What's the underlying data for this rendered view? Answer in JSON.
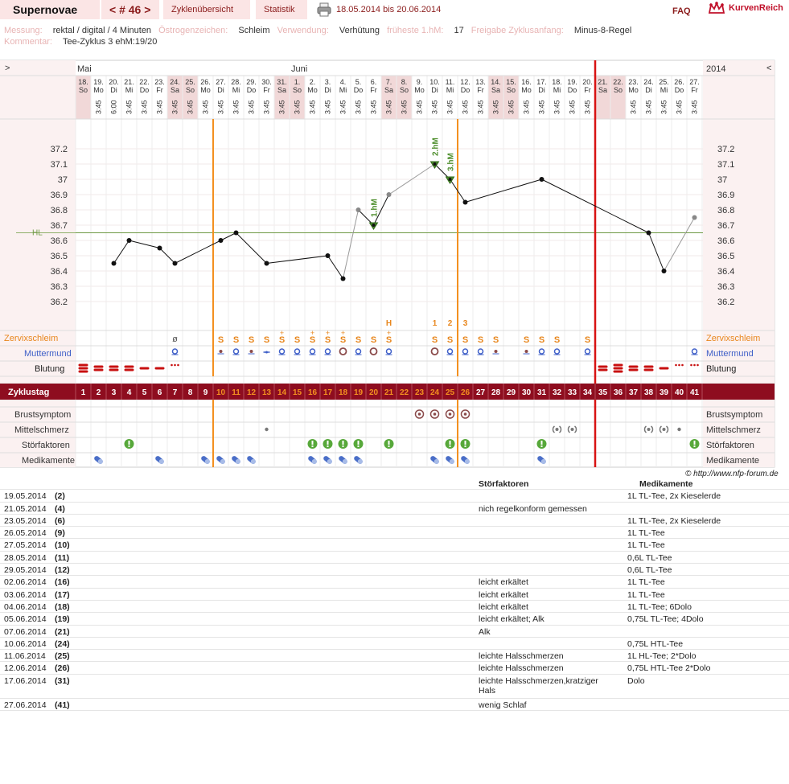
{
  "header": {
    "title": "Supernovae",
    "cycle_nav": "< # 46 >",
    "tab_overview": "Zyklenübersicht",
    "tab_stats": "Statistik",
    "date_range": "18.05.2014 bis 20.06.2014",
    "faq": "FAQ",
    "brand": "KurvenReich",
    "print_icon": "printer-icon",
    "brand_icon": "crown-icon"
  },
  "meta": {
    "messung_label": "Messung:",
    "messung_value": "rektal / digital / 4 Minuten",
    "oestrogen_label": "Östrogenzeichen:",
    "oestrogen_value": "Schleim",
    "verwendung_label": "Verwendung:",
    "verwendung_value": "Verhütung",
    "hm_label": "früheste 1.hM:",
    "hm_value": "17",
    "freigabe_label": "Freigabe Zyklusanfang:",
    "freigabe_value": "Minus-8-Regel",
    "kommentar_label": "Kommentar:",
    "kommentar_value": "Tee-Zyklus 3 ehM:19/20"
  },
  "chart_data": {
    "type": "line",
    "nav_prev": ">",
    "nav_next": "<",
    "year": "2014",
    "month_labels": [
      {
        "day": 1,
        "label": "Mai"
      },
      {
        "day": 15,
        "label": "Juni"
      }
    ],
    "dates": [
      "18.",
      "19.",
      "20.",
      "21.",
      "22.",
      "23.",
      "24.",
      "25.",
      "26.",
      "27.",
      "28.",
      "29.",
      "30.",
      "31.",
      "1.",
      "2.",
      "3.",
      "4.",
      "5.",
      "6.",
      "7.",
      "8.",
      "9.",
      "10.",
      "11.",
      "12.",
      "13.",
      "14.",
      "15.",
      "16.",
      "17.",
      "18.",
      "19.",
      "20.",
      "21.",
      "22.",
      "23.",
      "24.",
      "25.",
      "26.",
      "27."
    ],
    "weekdays": [
      "So",
      "Mo",
      "Di",
      "Mi",
      "Do",
      "Fr",
      "Sa",
      "So",
      "Mo",
      "Di",
      "Mi",
      "Do",
      "Fr",
      "Sa",
      "So",
      "Mo",
      "Di",
      "Mi",
      "Do",
      "Fr",
      "Sa",
      "So",
      "Mo",
      "Di",
      "Mi",
      "Do",
      "Fr",
      "Sa",
      "So",
      "Mo",
      "Di",
      "Mi",
      "Do",
      "Fr",
      "Sa",
      "So",
      "Mo",
      "Di",
      "Mi",
      "Do",
      "Fr"
    ],
    "weekend_days": [
      1,
      7,
      8,
      14,
      15,
      21,
      22,
      28,
      29,
      35,
      36
    ],
    "times": [
      "",
      "3:45",
      "6:00",
      "3:45",
      "3:45",
      "3:45",
      "3:45",
      "3:45",
      "3:45",
      "3:45",
      "3:45",
      "3:45",
      "3:45",
      "3:45",
      "3:45",
      "3:45",
      "3:45",
      "3:45",
      "3:45",
      "3:45",
      "3:45",
      "3:45",
      "3:45",
      "3:45",
      "3:45",
      "3:45",
      "3:45",
      "3:45",
      "3:45",
      "3:45",
      "3:45",
      "3:45",
      "3:45",
      "3:45",
      "",
      "",
      "3:45",
      "3:45",
      "3:45",
      "3:45",
      "3:45"
    ],
    "y_ticks": [
      "37.2",
      "37.1",
      "37",
      "36.9",
      "36.8",
      "36.7",
      "36.6",
      "36.5",
      "36.4",
      "36.3",
      "36.2"
    ],
    "ylim": [
      36.1,
      37.3
    ],
    "hl_label": "HL",
    "hl_value": 36.65,
    "orange_lines": [
      10,
      26
    ],
    "red_line": 35,
    "temps": [
      null,
      null,
      36.45,
      36.6,
      null,
      36.55,
      36.45,
      null,
      null,
      36.6,
      36.65,
      null,
      36.45,
      null,
      null,
      null,
      36.5,
      36.35,
      36.8,
      36.7,
      36.9,
      null,
      null,
      37.1,
      37.0,
      36.85,
      null,
      null,
      null,
      null,
      37.0,
      null,
      null,
      null,
      null,
      null,
      null,
      36.65,
      36.4,
      null,
      36.75
    ],
    "excluded_days": [
      19,
      21
    ],
    "marked_days": [
      20,
      24,
      25
    ],
    "hm_labels": [
      {
        "day": 20,
        "label": "1.hM"
      },
      {
        "day": 24,
        "label": "2.hM"
      },
      {
        "day": 25,
        "label": "3.hM"
      }
    ],
    "peak_marks": [
      {
        "day": 21,
        "label": "H"
      },
      {
        "day": 24,
        "label": "1"
      },
      {
        "day": 25,
        "label": "2"
      },
      {
        "day": 26,
        "label": "3"
      }
    ],
    "rows": {
      "zervix_label": "Zervixschleim",
      "mumu_label": "Muttermund",
      "blutung_label": "Blutung",
      "zyklustag_label": "Zyklustag",
      "brust_label": "Brustsymptom",
      "mittel_label": "Mittelschmerz",
      "stoer_label": "Störfaktoren",
      "medi_label": "Medikamente"
    },
    "zervix": [
      "",
      "",
      "",
      "",
      "",
      "",
      "ø",
      "",
      "",
      "S",
      "S",
      "S",
      "S",
      "S+",
      "S",
      "S+",
      "S+",
      "S+",
      "S",
      "S",
      "S+",
      "",
      "",
      "S",
      "S",
      "S",
      "S",
      "S",
      "",
      "S",
      "S",
      "S",
      "",
      "S",
      "",
      "",
      "",
      "",
      "",
      "",
      ""
    ],
    "mumu": [
      "",
      "",
      "",
      "",
      "",
      "",
      "o",
      "",
      "",
      "*",
      "o",
      "*",
      "-",
      "o",
      "o",
      "o",
      "o",
      "O",
      "o",
      "O",
      "o",
      "",
      "",
      "O",
      "o",
      "o",
      "o",
      "*",
      "",
      "*",
      "o",
      "o",
      "",
      "o",
      "",
      "",
      "",
      "",
      "",
      "",
      "o"
    ],
    "blutung": [
      3,
      2,
      2,
      2,
      1,
      1,
      4,
      0,
      0,
      0,
      0,
      0,
      0,
      0,
      0,
      0,
      0,
      0,
      0,
      0,
      0,
      0,
      0,
      0,
      0,
      0,
      0,
      0,
      0,
      0,
      0,
      0,
      0,
      0,
      2,
      3,
      2,
      2,
      1,
      4,
      4
    ],
    "cycle_days": [
      "1",
      "2",
      "3",
      "4",
      "5",
      "6",
      "7",
      "8",
      "9",
      "10",
      "11",
      "12",
      "13",
      "14",
      "15",
      "16",
      "17",
      "18",
      "19",
      "20",
      "21",
      "22",
      "23",
      "24",
      "25",
      "26",
      "27",
      "28",
      "29",
      "30",
      "31",
      "32",
      "33",
      "34",
      "35",
      "36",
      "37",
      "38",
      "39",
      "40",
      "41"
    ],
    "brust_days": [
      23,
      24,
      25,
      26
    ],
    "mittel": [
      {
        "day": 13,
        "t": "dot"
      },
      {
        "day": 32,
        "t": "big"
      },
      {
        "day": 33,
        "t": "big"
      },
      {
        "day": 38,
        "t": "big"
      },
      {
        "day": 39,
        "t": "big"
      },
      {
        "day": 40,
        "t": "dot"
      }
    ],
    "stoer_days": [
      4,
      16,
      17,
      18,
      19,
      21,
      25,
      26,
      31,
      41
    ],
    "medi_days": [
      2,
      6,
      9,
      10,
      11,
      12,
      16,
      17,
      18,
      19,
      24,
      25,
      26,
      31
    ]
  },
  "source": "© http://www.nfp-forum.de",
  "table": {
    "col_stoer": "Störfaktoren",
    "col_medi": "Medikamente",
    "rows": [
      {
        "date": "19.05.2014",
        "day": "(2)",
        "stoer": "",
        "medi": "1L TL-Tee, 2x Kieselerde"
      },
      {
        "date": "21.05.2014",
        "day": "(4)",
        "stoer": "nich regelkonform gemessen",
        "medi": ""
      },
      {
        "date": "23.05.2014",
        "day": "(6)",
        "stoer": "",
        "medi": "1L TL-Tee, 2x Kieselerde"
      },
      {
        "date": "26.05.2014",
        "day": "(9)",
        "stoer": "",
        "medi": "1L TL-Tee"
      },
      {
        "date": "27.05.2014",
        "day": "(10)",
        "stoer": "",
        "medi": "1L TL-Tee"
      },
      {
        "date": "28.05.2014",
        "day": "(11)",
        "stoer": "",
        "medi": "0,6L TL-Tee"
      },
      {
        "date": "29.05.2014",
        "day": "(12)",
        "stoer": "",
        "medi": "0,6L TL-Tee"
      },
      {
        "date": "02.06.2014",
        "day": "(16)",
        "stoer": "leicht erkältet",
        "medi": "1L TL-Tee"
      },
      {
        "date": "03.06.2014",
        "day": "(17)",
        "stoer": "leicht erkältet",
        "medi": "1L TL-Tee"
      },
      {
        "date": "04.06.2014",
        "day": "(18)",
        "stoer": "leicht erkältet",
        "medi": "1L TL-Tee; 6Dolo"
      },
      {
        "date": "05.06.2014",
        "day": "(19)",
        "stoer": "leicht erkältet; Alk",
        "medi": "0,75L TL-Tee; 4Dolo"
      },
      {
        "date": "07.06.2014",
        "day": "(21)",
        "stoer": "Alk",
        "medi": ""
      },
      {
        "date": "10.06.2014",
        "day": "(24)",
        "stoer": "",
        "medi": "0,75L HTL-Tee"
      },
      {
        "date": "11.06.2014",
        "day": "(25)",
        "stoer": "leichte Halsschmerzen",
        "medi": "1L HL-Tee; 2*Dolo"
      },
      {
        "date": "12.06.2014",
        "day": "(26)",
        "stoer": "leichte Halsschmerzen",
        "medi": "0,75L HTL-Tee  2*Dolo"
      },
      {
        "date": "17.06.2014",
        "day": "(31)",
        "stoer": "leichte Halsschmerzen,kratziger Hals",
        "medi": "Dolo"
      },
      {
        "date": "27.06.2014",
        "day": "(41)",
        "stoer": "wenig Schlaf",
        "medi": ""
      }
    ]
  }
}
